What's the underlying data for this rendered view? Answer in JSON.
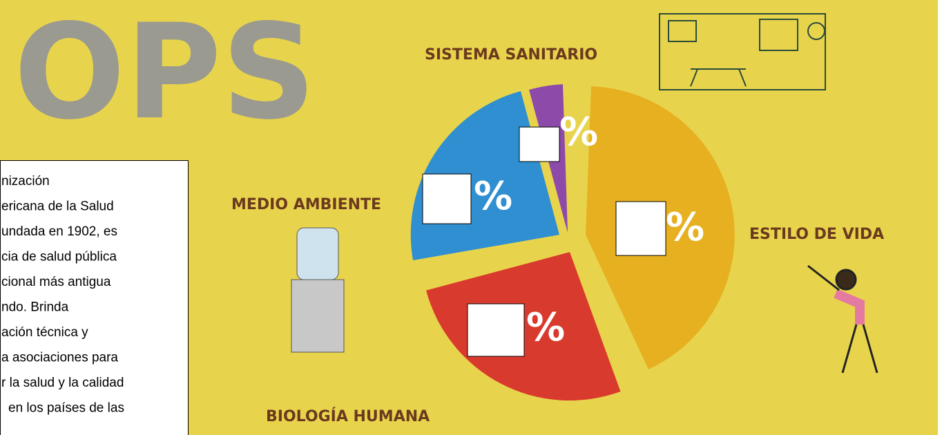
{
  "logo": "OPS",
  "labels": {
    "sistema_sanitario": "SISTEMA SANITARIO",
    "medio_ambiente": "MEDIO AMBIENTE",
    "estilo_de_vida": "ESTILO DE VIDA",
    "biologia_humana": "BIOLOGÍA HUMANA"
  },
  "percent_signs": [
    "%",
    "%",
    "%",
    "%"
  ],
  "text_box": {
    "lines": [
      "nización",
      "ericana de la Salud",
      "undada en 1902, es",
      "cia de salud pública",
      "cional más antigua",
      "ndo. Brinda",
      "ación técnica y",
      "a asociaciones para",
      "r la salud y la calidad",
      "en los países de las"
    ]
  }
}
